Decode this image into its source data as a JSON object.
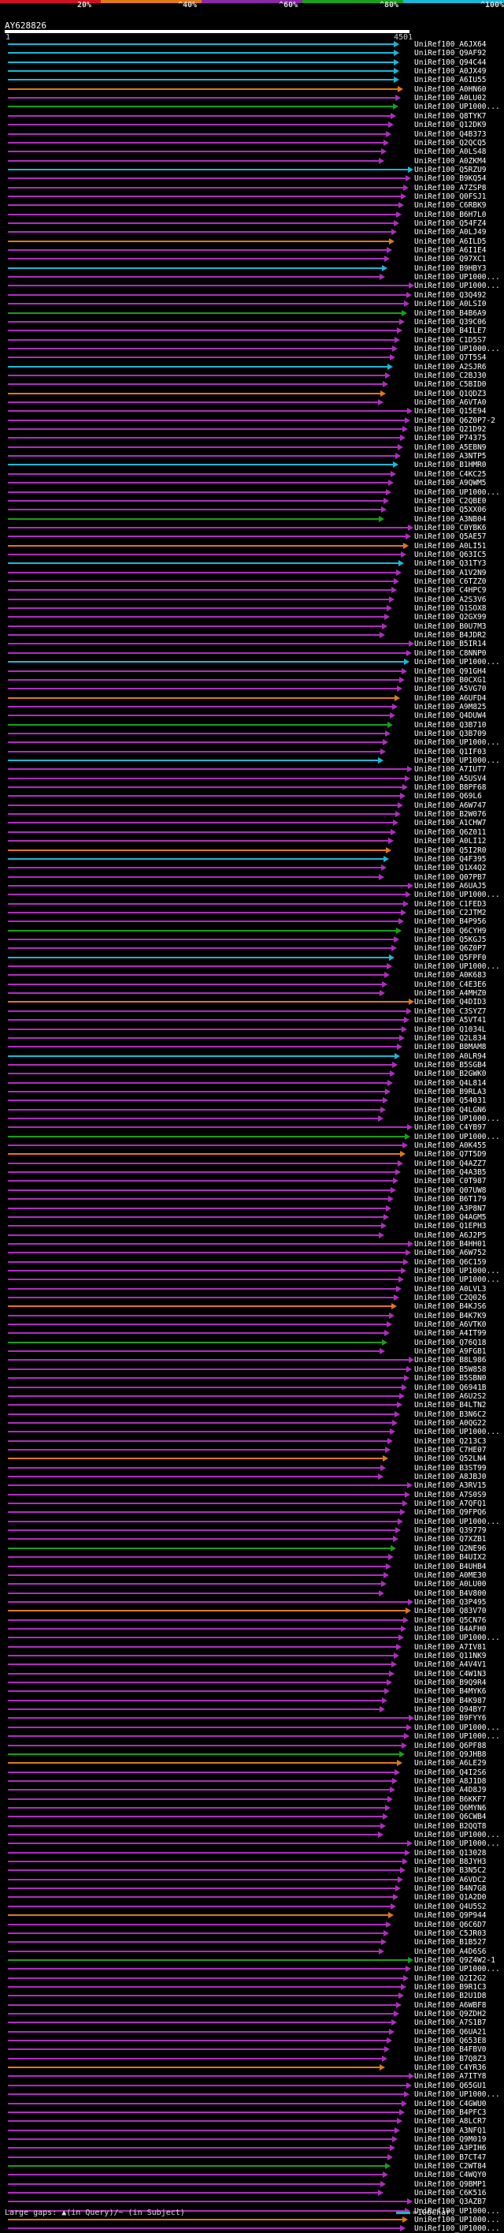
{
  "legend": [
    {
      "label": "20%",
      "color": "#d01020"
    },
    {
      "label": "^40%",
      "color": "#e07818"
    },
    {
      "label": "^60%",
      "color": "#8a28a8"
    },
    {
      "label": "^80%",
      "color": "#18a018"
    },
    {
      "label": "^100%",
      "color": "#18b8d8"
    }
  ],
  "query": {
    "id": "AY628826",
    "start": "1",
    "end": "4501"
  },
  "hits": [
    "UniRef100_A6JX64",
    "UniRef100_Q9AF92",
    "UniRef100_Q94C44",
    "UniRef100_A0JX49",
    "UniRef100_A6IU55",
    "UniRef100_A0HN60",
    "UniRef100_A0LU02",
    "UniRef100_UP1000...",
    "UniRef100_Q8TYK7",
    "UniRef100_Q12DK9",
    "UniRef100_Q4B373",
    "UniRef100_Q2QCQ5",
    "UniRef100_A0LS48",
    "UniRef100_A0ZKM4",
    "UniRef100_Q5RZU9",
    "UniRef100_B9KQ54",
    "UniRef100_A7ZSP8",
    "UniRef100_Q0FSJ1",
    "UniRef100_C6RBK9",
    "UniRef100_B6H7L0",
    "UniRef100_Q54FZ4",
    "UniRef100_A0LJ49",
    "UniRef100_A6ILD5",
    "UniRef100_A6I1E4",
    "UniRef100_Q97XC1",
    "UniRef100_B9HBY3",
    "UniRef100_UP1000...",
    "UniRef100_UP1000...",
    "UniRef100_Q3Q492",
    "UniRef100_A0LSI0",
    "UniRef100_B4B6A9",
    "UniRef100_Q39C06",
    "UniRef100_B4ILE7",
    "UniRef100_C1D5S7",
    "UniRef100_UP1000...",
    "UniRef100_Q7T5S4",
    "UniRef100_A2SJR6",
    "UniRef100_C2BJ30",
    "UniRef100_C5BID0",
    "UniRef100_Q1QDZ3",
    "UniRef100_A6VTA0",
    "UniRef100_Q15E94",
    "UniRef100_Q6Z0P7-2",
    "UniRef100_Q21D92",
    "UniRef100_P74375",
    "UniRef100_A5EBN9",
    "UniRef100_A3NTP5",
    "UniRef100_B1HMR0",
    "UniRef100_C4KC25",
    "UniRef100_A9QWM5",
    "UniRef100_UP1000...",
    "UniRef100_C2QBE0",
    "UniRef100_Q5XX06",
    "UniRef100_A3NB04",
    "UniRef100_C0YBK6",
    "UniRef100_Q5AE57",
    "UniRef100_A0LI51",
    "UniRef100_Q63IC5",
    "UniRef100_Q31TY3",
    "UniRef100_A1V2N9",
    "UniRef100_C6TZZ0",
    "UniRef100_C4HPC9",
    "UniRef100_A2S3V6",
    "UniRef100_Q1SOX8",
    "UniRef100_Q2GX99",
    "UniRef100_B0U7M3",
    "UniRef100_B4JDR2",
    "UniRef100_B5IR14",
    "UniRef100_C8NNP0",
    "UniRef100_UP1000...",
    "UniRef100_Q91GH4",
    "UniRef100_B0CXG1",
    "UniRef100_A5VG70",
    "UniRef100_A6UFD4",
    "UniRef100_A9M825",
    "UniRef100_Q4DUW4",
    "UniRef100_Q3B710",
    "UniRef100_Q3B709",
    "UniRef100_UP1000...",
    "UniRef100_Q1IF03",
    "UniRef100_UP1000...",
    "UniRef100_A7IUT7",
    "UniRef100_A5USV4",
    "UniRef100_B8PF68",
    "UniRef100_Q69L6",
    "UniRef100_A6W747",
    "UniRef100_B2W076",
    "UniRef100_A1CHW7",
    "UniRef100_Q6Z011",
    "UniRef100_A0LI12",
    "UniRef100_Q5I2R0",
    "UniRef100_Q4F395",
    "UniRef100_Q1X4Q2",
    "UniRef100_Q07PB7",
    "UniRef100_A6UAJ5",
    "UniRef100_UP1000...",
    "UniRef100_C1FED3",
    "UniRef100_C2JTM2",
    "UniRef100_B4P956",
    "UniRef100_Q6CYH9",
    "UniRef100_Q5KGJ5",
    "UniRef100_Q6Z0P7",
    "UniRef100_Q5FPF0",
    "UniRef100_UP1000...",
    "UniRef100_A0K683",
    "UniRef100_C4E3E6",
    "UniRef100_A4MHZ0",
    "UniRef100_Q4DID3",
    "UniRef100_C3SYZ7",
    "UniRef100_A5VT41",
    "UniRef100_Q1034L",
    "UniRef100_Q2L834",
    "UniRef100_B8MAM8",
    "UniRef100_A0LR94",
    "UniRef100_B5SGB4",
    "UniRef100_B2GWK0",
    "UniRef100_Q4L814",
    "UniRef100_B9RLA3",
    "UniRef100_Q54031",
    "UniRef100_Q4LGN6",
    "UniRef100_UP1000...",
    "UniRef100_C4YB97",
    "UniRef100_UP1000...",
    "UniRef100_A0K455",
    "UniRef100_Q7T5D9",
    "UniRef100_Q4AZZ7",
    "UniRef100_Q4A3B5",
    "UniRef100_C0T987",
    "UniRef100_Q07UW8",
    "UniRef100_B6T179",
    "UniRef100_A3P8N7",
    "UniRef100_Q4AGM5",
    "UniRef100_Q1EPH3",
    "UniRef100_A6J2P5",
    "UniRef100_B4HH01",
    "UniRef100_A6W752",
    "UniRef100_Q6C159",
    "UniRef100_UP1000...",
    "UniRef100_UP1000...",
    "UniRef100_A0LVL3",
    "UniRef100_C2Q026",
    "UniRef100_B4KJS6",
    "UniRef100_B4K7K9",
    "UniRef100_A6VTK0",
    "UniRef100_A4IT99",
    "UniRef100_Q76Q18",
    "UniRef100_A9FGB1",
    "UniRef100_B8L986",
    "UniRef100_B5W858",
    "UniRef100_B5SBN0",
    "UniRef100_Q6941B",
    "UniRef100_A6U2S2",
    "UniRef100_B4LTN2",
    "UniRef100_B3N6C2",
    "UniRef100_A0QG22",
    "UniRef100_UP1000...",
    "UniRef100_Q213C3",
    "UniRef100_C7HE07",
    "UniRef100_Q52LN4",
    "UniRef100_B3ST99",
    "UniRef100_A8JBJ0",
    "UniRef100_A3RV15",
    "UniRef100_A7S0S9",
    "UniRef100_A7QFQ1",
    "UniRef100_Q9FPQ6",
    "UniRef100_UP1000...",
    "UniRef100_Q39779",
    "UniRef100_Q7XZB1",
    "UniRef100_Q2NE96",
    "UniRef100_B4UIX2",
    "UniRef100_B4UHB4",
    "UniRef100_A0ME30",
    "UniRef100_A0LU00",
    "UniRef100_B4V800",
    "UniRef100_Q3P495",
    "UniRef100_Q83V70",
    "UniRef100_Q5CN76",
    "UniRef100_B4AFH0",
    "UniRef100_UP1000...",
    "UniRef100_A7IV81",
    "UniRef100_Q11NK9",
    "UniRef100_A4V4V1",
    "UniRef100_C4W1N3",
    "UniRef100_B9Q9R4",
    "UniRef100_B4MYK6",
    "UniRef100_B4K987",
    "UniRef100_Q94BY7",
    "UniRef100_B9FYY6",
    "UniRef100_UP1000...",
    "UniRef100_UP1000...",
    "UniRef100_Q6PF88",
    "UniRef100_Q9JHB8",
    "UniRef100_A6LE29",
    "UniRef100_Q4I2S6",
    "UniRef100_A8J1D8",
    "UniRef100_A4D8J9",
    "UniRef100_B6KKF7",
    "UniRef100_Q6MYN6",
    "UniRef100_Q6CWB4",
    "UniRef100_B2QQT8",
    "UniRef100_UP1000...",
    "UniRef100_UP1000...",
    "UniRef100_Q13028",
    "UniRef100_B8JYH3",
    "UniRef100_B3N5C2",
    "UniRef100_A6VDC2",
    "UniRef100_B4N7G8",
    "UniRef100_Q1A2D0",
    "UniRef100_Q4U5S2",
    "UniRef100_Q9P944",
    "UniRef100_Q6C6D7",
    "UniRef100_C5JR03",
    "UniRef100_B1B527",
    "UniRef100_A4D6S6",
    "UniRef100_Q9Z4W2-1",
    "UniRef100_UP1000...",
    "UniRef100_Q2I2G2",
    "UniRef100_B9R1C3",
    "UniRef100_B2U1D8",
    "UniRef100_A6WBF8",
    "UniRef100_Q9ZDH2",
    "UniRef100_A7S1B7",
    "UniRef100_Q6UA21",
    "UniRef100_Q653E8",
    "UniRef100_B4FBV0",
    "UniRef100_B7Q8Z3",
    "UniRef100_C4YR36",
    "UniRef100_A7ITY8",
    "UniRef100_Q65GU1",
    "UniRef100_UP1000...",
    "UniRef100_C4GWU0",
    "UniRef100_B4PFC3",
    "UniRef100_A8LCR7",
    "UniRef100_A3NFQ1",
    "UniRef100_Q9M019",
    "UniRef100_A3PIH6",
    "UniRef100_B7CT47",
    "UniRef100_C2WT84",
    "UniRef100_C4WQY0",
    "UniRef100_Q9BMP1",
    "UniRef100_C6K516",
    "UniRef100_Q3AZB7",
    "UniRef100_UP1000...",
    "UniRef100_UP1000...",
    "UniRef100_UP1000..."
  ],
  "footer": {
    "large_gaps": "Large gaps: ▲(in Query)/~ (in Subject)",
    "scale": "=100char."
  }
}
